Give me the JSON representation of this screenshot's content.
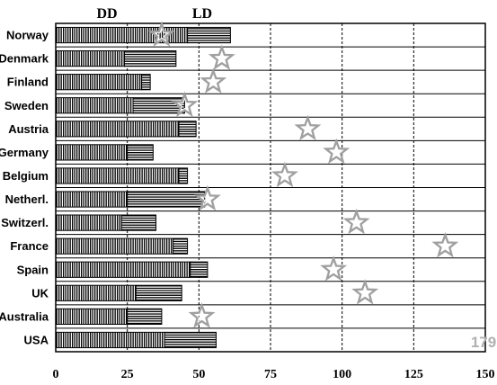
{
  "chart_data": {
    "type": "bar",
    "orientation": "horizontal",
    "stacked": true,
    "categories": [
      "Norway",
      "Denmark",
      "Finland",
      "Sweden",
      "Austria",
      "Germany",
      "Belgium",
      "Netherl.",
      "Switzerl.",
      "France",
      "Spain",
      "UK",
      "Australia",
      "USA"
    ],
    "series": [
      {
        "name": "DD",
        "values": [
          46,
          24,
          30,
          27,
          43,
          25,
          43,
          25,
          23,
          41,
          47,
          28,
          25,
          38
        ]
      },
      {
        "name": "LD",
        "values": [
          15,
          18,
          3,
          18,
          6,
          9,
          3,
          27,
          12,
          5,
          6,
          16,
          12,
          18
        ]
      }
    ],
    "markers": {
      "shape": "star",
      "values": [
        37,
        58,
        55,
        45,
        88,
        98,
        80,
        53,
        105,
        136,
        97,
        108,
        51,
        179
      ]
    },
    "annotations": [
      {
        "text": "179",
        "category": "USA",
        "placement": "right-edge"
      }
    ],
    "xticks": [
      "0",
      "25",
      "50",
      "75",
      "100",
      "125",
      "150"
    ],
    "xlim": [
      0,
      150
    ],
    "grid": {
      "vertical": true,
      "style": "dashed",
      "horizontal_separators": true
    },
    "legend": "none",
    "colors": {
      "dd_fill": "#000000",
      "ld_fill": "#000000",
      "star_stroke": "#a0a0a0",
      "annotation": "#b0b0b0"
    }
  }
}
